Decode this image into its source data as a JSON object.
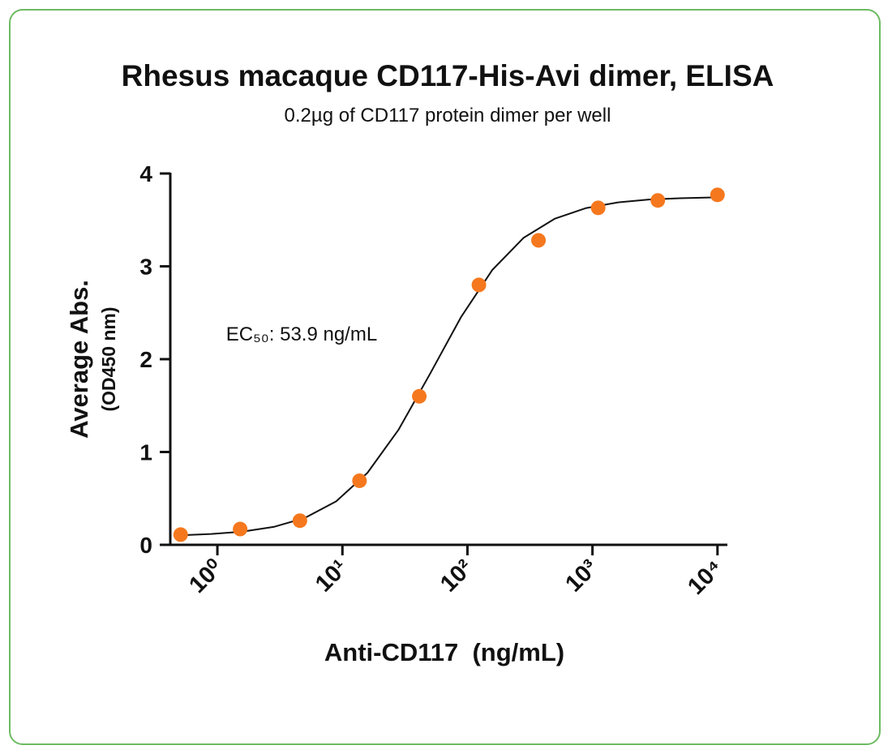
{
  "chart_data": {
    "type": "scatter",
    "title": "Rhesus macaque CD117-His-Avi dimer, ELISA",
    "subtitle": "0.2µg of CD117 protein dimer per well",
    "x_label": "Anti-CD117  (ng/mL)",
    "y_label": [
      "Average Abs.",
      "(OD450 nm)"
    ],
    "annotation": "EC₅₀: 53.9 ng/mL",
    "x_log": true,
    "xlim": [
      0.42,
      12000
    ],
    "ylim": [
      0,
      4
    ],
    "xticks": [
      {
        "value": 1,
        "label": "10⁰"
      },
      {
        "value": 10,
        "label": "10¹"
      },
      {
        "value": 100,
        "label": "10²"
      },
      {
        "value": 1000,
        "label": "10³"
      },
      {
        "value": 10000,
        "label": "10⁴"
      }
    ],
    "yticks": [
      0,
      1,
      2,
      3,
      4
    ],
    "series": [
      {
        "type": "scatter",
        "color": "#f5781e",
        "x": [
          0.508,
          1.52,
          4.57,
          13.7,
          41.2,
          123.5,
          370,
          1111,
          3333,
          10000
        ],
        "values": [
          0.11,
          0.17,
          0.26,
          0.69,
          1.6,
          2.8,
          3.28,
          3.63,
          3.71,
          3.77
        ]
      },
      {
        "type": "line",
        "color": "#111111",
        "x": [
          0.501,
          0.891,
          1.585,
          2.818,
          5.012,
          8.913,
          15.85,
          28.18,
          50.12,
          89.13,
          158.5,
          281.8,
          501.2,
          891.3,
          1585,
          2818,
          5012,
          10000
        ],
        "values": [
          0.103,
          0.117,
          0.142,
          0.193,
          0.29,
          0.468,
          0.775,
          1.242,
          1.84,
          2.456,
          2.963,
          3.308,
          3.514,
          3.628,
          3.688,
          3.719,
          3.734,
          3.743
        ]
      }
    ]
  }
}
